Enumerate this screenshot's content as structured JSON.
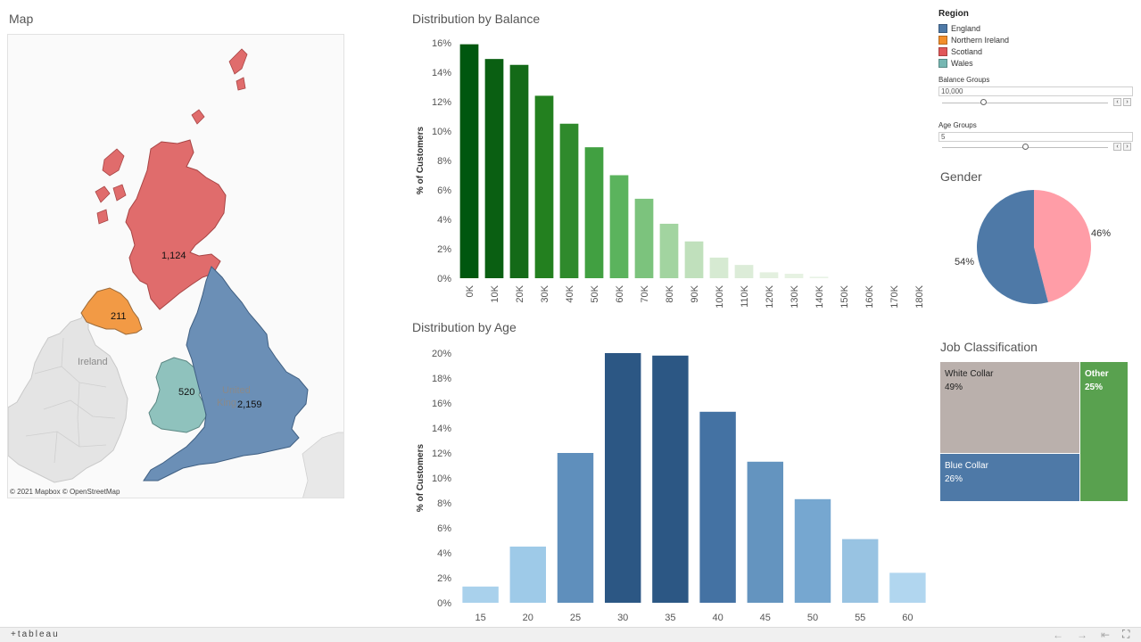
{
  "map": {
    "title": "Map",
    "credit": "© 2021 Mapbox  © OpenStreetMap",
    "labels": {
      "ireland": "Ireland",
      "uk_line1": "United",
      "uk_line2": "King",
      "scotland": "1,124",
      "northern_ireland": "211",
      "wales": "520",
      "england": "2,159"
    }
  },
  "balance_chart": {
    "title": "Distribution by Balance",
    "ylabel": "% of Customers"
  },
  "age_chart": {
    "title": "Distribution by Age",
    "ylabel": "% of Customers"
  },
  "chart_data": [
    {
      "type": "bar",
      "title": "Distribution by Balance",
      "xlabel": "",
      "ylabel": "% of Customers",
      "categories": [
        "0K",
        "10K",
        "20K",
        "30K",
        "40K",
        "50K",
        "60K",
        "70K",
        "80K",
        "90K",
        "100K",
        "110K",
        "120K",
        "130K",
        "140K",
        "150K",
        "160K",
        "170K",
        "180K"
      ],
      "values": [
        15.9,
        14.9,
        14.5,
        12.4,
        10.5,
        8.9,
        7.0,
        5.4,
        3.7,
        2.5,
        1.4,
        0.9,
        0.4,
        0.3,
        0.1,
        0.0,
        0.0,
        0.0,
        0.0
      ],
      "ylim": [
        0,
        16
      ],
      "yticks": [
        "0%",
        "2%",
        "4%",
        "6%",
        "8%",
        "10%",
        "12%",
        "14%",
        "16%"
      ],
      "colors": [
        "#00570f",
        "#0a5f12",
        "#146a18",
        "#23801f",
        "#2f8a2c",
        "#41a041",
        "#5bb35d",
        "#7cc37d",
        "#a2d4a0",
        "#c0e0bc",
        "#d6ead2",
        "#dcecd8",
        "#e3f0df",
        "#e6f2e2",
        "#e9f3e6",
        "#eef6ec",
        "#eef6ec",
        "#eef6ec",
        "#eef6ec"
      ],
      "grid": false
    },
    {
      "type": "bar",
      "title": "Distribution by Age",
      "xlabel": "",
      "ylabel": "% of Customers",
      "categories": [
        "15",
        "20",
        "25",
        "30",
        "35",
        "40",
        "45",
        "50",
        "55",
        "60"
      ],
      "values": [
        1.3,
        4.5,
        12.0,
        20.0,
        19.8,
        15.3,
        11.3,
        8.3,
        5.1,
        2.4
      ],
      "ylim": [
        0,
        20
      ],
      "yticks": [
        "0%",
        "2%",
        "4%",
        "6%",
        "8%",
        "10%",
        "12%",
        "14%",
        "16%",
        "18%",
        "20%"
      ],
      "colors": [
        "#a9d1ec",
        "#9ecae8",
        "#5f8fbc",
        "#2c5784",
        "#2c5784",
        "#4472a3",
        "#6494bf",
        "#76a7d0",
        "#98c3e2",
        "#b1d6ef"
      ],
      "grid": false
    },
    {
      "type": "pie",
      "title": "Gender",
      "categories": [
        "",
        ""
      ],
      "values": [
        54,
        46
      ],
      "labels": [
        "54%",
        "46%"
      ],
      "colors": [
        "#4e79a7",
        "#ff9da7"
      ]
    }
  ],
  "legend": {
    "title": "Region",
    "items": [
      {
        "label": "England",
        "color": "#4e79a7"
      },
      {
        "label": "Northern Ireland",
        "color": "#f28e2b"
      },
      {
        "label": "Scotland",
        "color": "#e15759"
      },
      {
        "label": "Wales",
        "color": "#76b7b2"
      }
    ]
  },
  "parameters": {
    "balance_groups": {
      "label": "Balance Groups",
      "value": "10,000"
    },
    "age_groups": {
      "label": "Age Groups",
      "value": "5"
    }
  },
  "gender": {
    "title": "Gender",
    "male_pct": "54%",
    "female_pct": "46%"
  },
  "job": {
    "title": "Job Classification",
    "white": {
      "name": "White Collar",
      "pct": "49%",
      "color": "#bab0ac"
    },
    "blue": {
      "name": "Blue Collar",
      "pct": "26%",
      "color": "#4e79a7"
    },
    "other": {
      "name": "Other",
      "pct": "25%",
      "color": "#59a14f"
    }
  },
  "footer": {
    "logo": "+tableau",
    "back": "←",
    "forward": "→",
    "first": "⇤",
    "fullscreen": "⛶"
  },
  "icons": {
    "arrow_left": "‹",
    "arrow_right": "›"
  }
}
